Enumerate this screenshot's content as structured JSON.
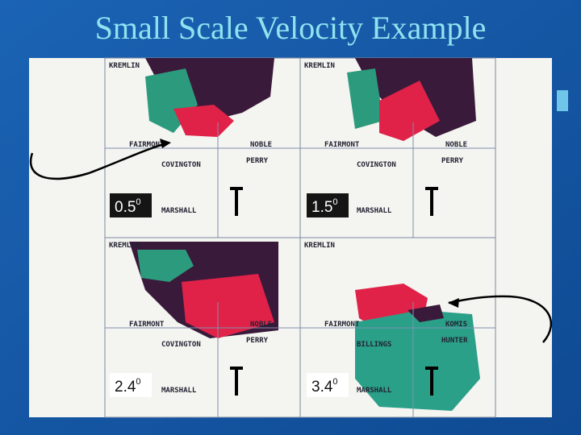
{
  "slide": {
    "title": "Small Scale Velocity Example",
    "panels": [
      {
        "elevation": "0.5",
        "degree": "0",
        "places": [
          "KREMLIN",
          "FAIRMONT",
          "COVINGTON",
          "PERRY",
          "NOBLE",
          "MARSHALL"
        ]
      },
      {
        "elevation": "1.5",
        "degree": "0",
        "places": [
          "KREMLIN",
          "FAIRMONT",
          "COVINGTON",
          "PERRY",
          "NOBLE",
          "MARSHALL"
        ]
      },
      {
        "elevation": "2.4",
        "degree": "0",
        "places": [
          "KREMLIN",
          "FAIRMONT",
          "COVINGTON",
          "PERRY",
          "NOBLE",
          "MARSHALL"
        ]
      },
      {
        "elevation": "3.4",
        "degree": "0",
        "places": [
          "KREMLIN",
          "FAIRMONT",
          "BILLINGS",
          "HUNTER",
          "KOMIS",
          "MARSHALL"
        ]
      }
    ]
  }
}
